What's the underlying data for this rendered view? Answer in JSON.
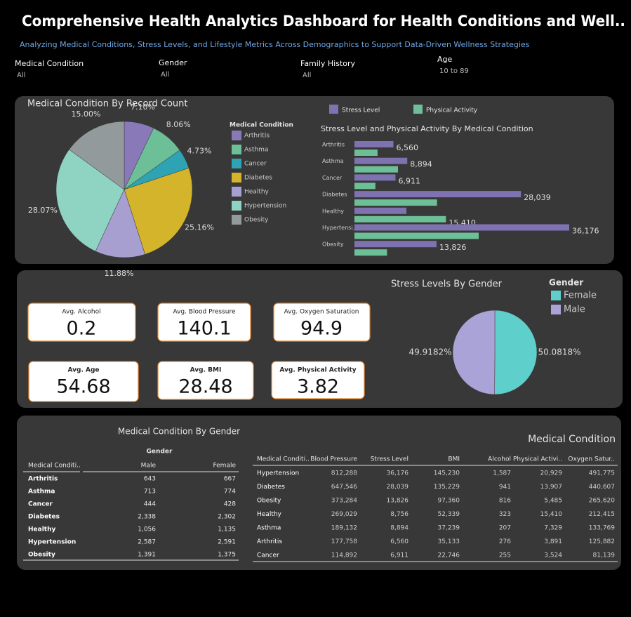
{
  "header": {
    "title": "Comprehensive Health Analytics Dashboard for Health Conditions and Well..",
    "subtitle": "Analyzing Medical Conditions, Stress Levels, and Lifestyle Metrics Across Demographics to Support Data-Driven Wellness Strategies"
  },
  "filters": [
    {
      "label": "Medical Condition",
      "value": "All"
    },
    {
      "label": "Gender",
      "value": "All"
    },
    {
      "label": "Family History",
      "value": "All"
    },
    {
      "label": "Age",
      "value": "10 to 89"
    }
  ],
  "chart_data": [
    {
      "type": "pie",
      "title": "Medical Condition By Record Count",
      "legend_title": "Medical Condition",
      "legend": "right",
      "categories": [
        "Arthritis",
        "Asthma",
        "Cancer",
        "Diabetes",
        "Healthy",
        "Hypertension",
        "Obesity"
      ],
      "values": [
        7.1,
        8.06,
        4.73,
        25.16,
        11.88,
        28.07,
        15
      ],
      "value_labels": [
        "7.10%",
        "8.06%",
        "4.73%",
        "25.16%",
        "11.88%",
        "28.07%",
        "15.00%"
      ],
      "colors": [
        "#8a79b8",
        "#6cbf96",
        "#2ea3b4",
        "#d4b42a",
        "#a79fd0",
        "#8fd3c2",
        "#939a9b"
      ]
    },
    {
      "type": "bar",
      "horizontal": true,
      "title": "Stress Level and Physical Activity By Medical Condition",
      "legend": "top",
      "categories": [
        "Arthritis",
        "Asthma",
        "Cancer",
        "Diabetes",
        "Healthy",
        "Hypertensi..",
        "Obesity"
      ],
      "series": [
        {
          "name": "Stress Level",
          "color": "#7f72b1",
          "values": [
            6560,
            8894,
            6911,
            28039,
            8756,
            36176,
            13826
          ],
          "value_labels": [
            "6,560",
            "8,894",
            "6,911",
            "28,039",
            null,
            "36,176",
            "13,826"
          ]
        },
        {
          "name": "Physical Activity",
          "color": "#6dbf97",
          "values": [
            3891,
            7329,
            3524,
            13907,
            15410,
            20929,
            5485
          ],
          "value_labels": [
            null,
            null,
            null,
            null,
            "15,410",
            null,
            null
          ]
        }
      ]
    },
    {
      "type": "pie",
      "title": "Stress Levels By Gender",
      "legend_title": "Gender",
      "legend": "right",
      "categories": [
        "Female",
        "Male"
      ],
      "values": [
        50.0818,
        49.9182
      ],
      "value_labels": [
        "50.0818%",
        "49.9182%"
      ],
      "colors": [
        "#5ecfca",
        "#a9a3d8"
      ]
    }
  ],
  "kpis": [
    {
      "label": "Avg. Alcohol",
      "value": 0.2
    },
    {
      "label": "Avg. Blood Pressure",
      "value": 140.1
    },
    {
      "label": "Avg. Oxygen Saturation",
      "value": 94.9
    },
    {
      "label": "Avg. Age",
      "value": 54.68
    },
    {
      "label": "Avg. BMI",
      "value": 28.48
    },
    {
      "label": "Avg. Physical Activity",
      "value": 3.82
    }
  ],
  "tables": [
    {
      "title": "Medical Condition By Gender",
      "group_header": "Gender",
      "columns": [
        "Medical Conditi..",
        "Male",
        "Female"
      ],
      "rows": [
        [
          "Arthritis",
          "643",
          "667"
        ],
        [
          "Asthma",
          "713",
          "774"
        ],
        [
          "Cancer",
          "444",
          "428"
        ],
        [
          "Diabetes",
          "2,338",
          "2,302"
        ],
        [
          "Healthy",
          "1,056",
          "1,135"
        ],
        [
          "Hypertension",
          "2,587",
          "2,591"
        ],
        [
          "Obesity",
          "1,391",
          "1,375"
        ]
      ]
    },
    {
      "title": "Medical Condition",
      "columns": [
        "Medical Conditi..",
        "Blood Pressure",
        "Stress Level",
        "BMI",
        "Alcohol",
        "Physical Activi..",
        "Oxygen Satur.."
      ],
      "rows": [
        [
          "Hypertension",
          "812,288",
          "36,176",
          "145,230",
          "1,587",
          "20,929",
          "491,775"
        ],
        [
          "Diabetes",
          "647,546",
          "28,039",
          "135,229",
          "941",
          "13,907",
          "440,607"
        ],
        [
          "Obesity",
          "373,284",
          "13,826",
          "97,360",
          "816",
          "5,485",
          "265,620"
        ],
        [
          "Healthy",
          "269,029",
          "8,756",
          "52,339",
          "323",
          "15,410",
          "212,415"
        ],
        [
          "Asthma",
          "189,132",
          "8,894",
          "37,239",
          "207",
          "7,329",
          "133,769"
        ],
        [
          "Arthritis",
          "177,758",
          "6,560",
          "35,133",
          "276",
          "3,891",
          "125,882"
        ],
        [
          "Cancer",
          "114,892",
          "6,911",
          "22,746",
          "255",
          "3,524",
          "81,139"
        ]
      ]
    }
  ]
}
